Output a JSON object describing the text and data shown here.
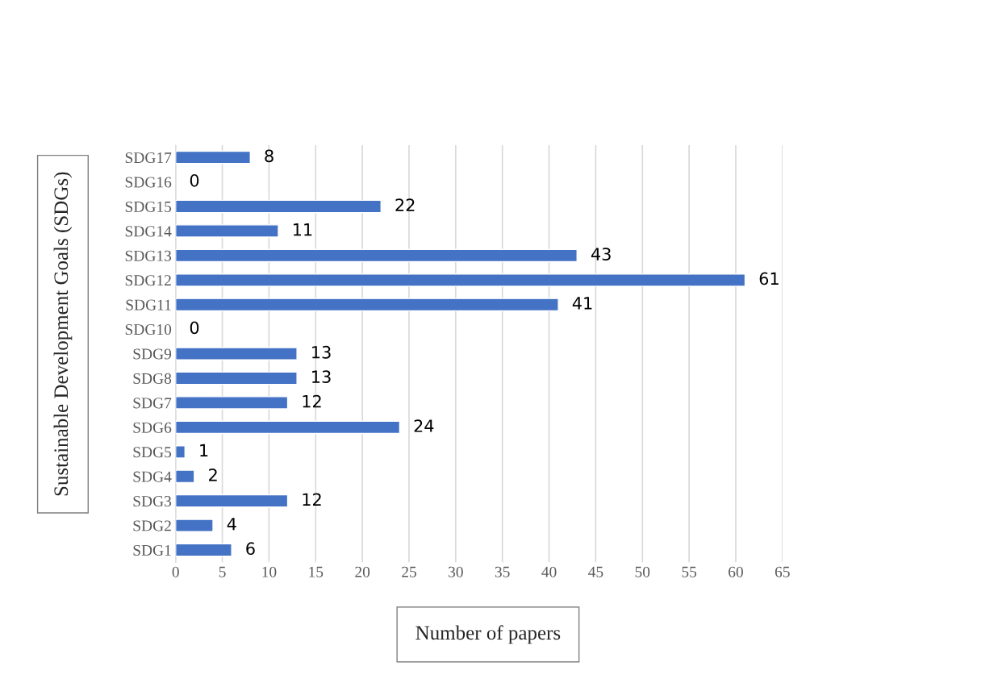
{
  "chart_data": {
    "type": "bar",
    "orientation": "horizontal",
    "xlabel": "Number of papers",
    "ylabel": "Sustainable Development Goals (SDGs)",
    "categories": [
      "SDG17",
      "SDG16",
      "SDG15",
      "SDG14",
      "SDG13",
      "SDG12",
      "SDG11",
      "SDG10",
      "SDG9",
      "SDG8",
      "SDG7",
      "SDG6",
      "SDG5",
      "SDG4",
      "SDG3",
      "SDG2",
      "SDG1"
    ],
    "values": [
      8,
      0,
      22,
      11,
      43,
      61,
      41,
      0,
      13,
      13,
      12,
      24,
      1,
      2,
      12,
      4,
      6
    ],
    "color": "#4472c4",
    "xlim": [
      0,
      65
    ],
    "xticks": [
      0,
      5,
      10,
      15,
      20,
      25,
      30,
      35,
      40,
      45,
      50,
      55,
      60,
      65
    ],
    "grid": "x",
    "data_labels": true
  }
}
